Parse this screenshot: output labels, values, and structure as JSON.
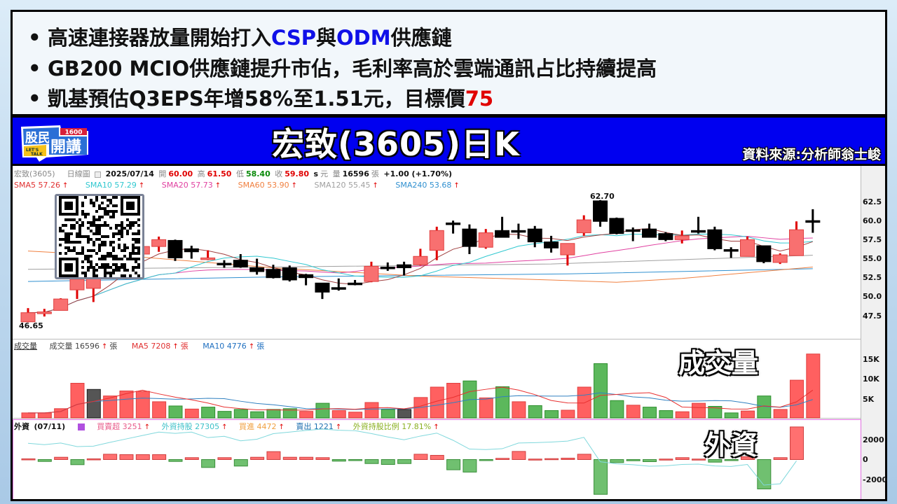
{
  "notes": {
    "bullet": "•",
    "line1": {
      "a": "高速連接器放量開始打入",
      "b": "CSP",
      "c": "與",
      "d": "ODM",
      "e": "供應鏈"
    },
    "line2": {
      "a": "GB200 MCIO供應鏈提升市佔，毛利率高於雲端通訊占比持續提高"
    },
    "line3": {
      "a": "凱基預估Q3EPS年增58%至1.51元，目標價",
      "b": "75"
    }
  },
  "titlebar": {
    "logo_text": "股民開講 1600 LET'S TALK",
    "title": "宏致(3605)日K",
    "source": "資料來源:分析師翁士峻"
  },
  "info": {
    "stock": "宏致(3605)",
    "period": "日線圖",
    "date": "2025/07/14",
    "open_label": "開",
    "open": "60.00",
    "high_label": "高",
    "high": "61.50",
    "low_label": "低",
    "low": "58.40",
    "close_label": "收",
    "close": "59.80",
    "s": "s",
    "unit": "元",
    "vol_label": "量",
    "volume": "16596",
    "vol_unit": "張",
    "change": "+1.00 (+1.70%)"
  },
  "sma": [
    {
      "label": "SMA5 57.26",
      "color": "#e03030"
    },
    {
      "label": "SMA10 57.29",
      "color": "#30c8d0"
    },
    {
      "label": "SMA20 57.73",
      "color": "#e040a0"
    },
    {
      "label": "SMA60 53.90",
      "color": "#f08040"
    },
    {
      "label": "SMA120 55.45",
      "color": "#a0a0a0"
    },
    {
      "label": "SMA240 53.68",
      "color": "#3090d0"
    }
  ],
  "up_arrow": "↑",
  "volume_header": {
    "title": "成交量",
    "vol": "成交量 16596",
    "unit": "張",
    "ma5": "MA5 7208",
    "ma10": "MA10 4776"
  },
  "foreign_header": {
    "title": "外資",
    "date": "(07/11)",
    "net": "買賣超 3251",
    "holding": "外資持股 27305",
    "buy": "買進 4472",
    "sell": "賣出 1221",
    "ratio": "外資持股比例 17.81%"
  },
  "overlays": {
    "volume": "成交量",
    "foreign": "外資"
  },
  "axes": {
    "price_ticks": [
      "62.5",
      "60.0",
      "57.5",
      "55.0",
      "52.5",
      "50.0",
      "47.5"
    ],
    "volume_ticks": [
      "15K",
      "10K",
      "5K"
    ],
    "foreign_ticks": [
      "2000",
      "0",
      "-2000"
    ]
  },
  "colors": {
    "up": "#f87070",
    "up_border": "#e00000",
    "down": "#000000",
    "vol_up": "#ff6060",
    "vol_down": "#5cb85c",
    "vol_flat": "#555555",
    "frame": "#000000",
    "title_bg": "#0000f0"
  },
  "chart_data": [
    {
      "type": "candlestick",
      "ylim": [
        45,
        63.5
      ],
      "high_label": "62.70",
      "low_label": "46.65",
      "ohlc": [
        [
          46.7,
          48.5,
          46.65,
          47.9
        ],
        [
          47.8,
          48.4,
          47.4,
          48.0
        ],
        [
          48.2,
          49.8,
          48.2,
          49.7
        ],
        [
          50.9,
          52.6,
          49.7,
          52.3
        ],
        [
          51.1,
          53.0,
          49.3,
          52.5
        ],
        [
          52.5,
          55.5,
          52.3,
          55.0
        ],
        [
          55.0,
          57.0,
          54.8,
          56.5
        ],
        [
          55.6,
          56.8,
          55.5,
          56.6
        ],
        [
          56.6,
          57.9,
          55.9,
          57.5
        ],
        [
          57.4,
          57.5,
          54.7,
          55.1
        ],
        [
          56.3,
          56.7,
          55.0,
          55.9
        ],
        [
          55.0,
          56.1,
          54.8,
          55.1
        ],
        [
          54.4,
          54.8,
          53.8,
          54.3
        ],
        [
          54.8,
          55.6,
          53.8,
          53.9
        ],
        [
          53.8,
          55.0,
          52.9,
          53.3
        ],
        [
          53.6,
          54.2,
          52.4,
          52.5
        ],
        [
          53.8,
          54.1,
          52.0,
          52.2
        ],
        [
          52.9,
          53.0,
          51.5,
          52.5
        ],
        [
          51.8,
          51.8,
          49.7,
          50.6
        ],
        [
          51.2,
          52.4,
          50.8,
          51.1
        ],
        [
          51.8,
          52.2,
          51.5,
          51.7
        ],
        [
          52.0,
          54.6,
          51.9,
          54.0
        ],
        [
          53.9,
          54.5,
          53.4,
          53.8
        ],
        [
          54.2,
          54.6,
          52.8,
          53.8
        ],
        [
          54.2,
          56.3,
          54.1,
          55.3
        ],
        [
          56.1,
          59.2,
          54.8,
          58.7
        ],
        [
          59.7,
          60.0,
          58.3,
          59.6
        ],
        [
          58.9,
          59.5,
          55.6,
          56.6
        ],
        [
          56.5,
          58.9,
          56.3,
          58.4
        ],
        [
          58.7,
          60.5,
          57.8,
          57.8
        ],
        [
          58.7,
          59.6,
          57.6,
          58.5
        ],
        [
          58.9,
          59.3,
          56.5,
          57.2
        ],
        [
          57.2,
          58.0,
          55.8,
          56.4
        ],
        [
          55.5,
          57.0,
          54.1,
          57.0
        ],
        [
          58.4,
          60.7,
          58.0,
          60.1
        ],
        [
          62.6,
          62.7,
          59.2,
          59.9
        ],
        [
          60.3,
          60.4,
          58.2,
          58.3
        ],
        [
          58.8,
          59.1,
          57.3,
          58.7
        ],
        [
          58.9,
          59.6,
          57.8,
          57.8
        ],
        [
          58.3,
          58.5,
          57.3,
          57.5
        ],
        [
          57.5,
          58.7,
          57.0,
          58.0
        ],
        [
          58.7,
          60.5,
          58.3,
          58.6
        ],
        [
          58.8,
          59.2,
          56.1,
          56.3
        ],
        [
          56.2,
          56.5,
          55.1,
          56.1
        ],
        [
          55.3,
          57.9,
          55.3,
          57.5
        ],
        [
          56.7,
          56.7,
          54.4,
          54.6
        ],
        [
          54.5,
          55.7,
          54.3,
          55.5
        ],
        [
          55.4,
          59.9,
          55.4,
          58.8
        ],
        [
          60.0,
          61.5,
          58.4,
          59.8
        ]
      ],
      "long_sma": {
        "SMA60": [
          [
            1,
            56.0
          ],
          [
            8,
            55.2
          ],
          [
            16,
            53.8
          ],
          [
            25,
            52.7
          ],
          [
            33,
            52.2
          ],
          [
            37,
            51.9
          ],
          [
            41,
            52.4
          ],
          [
            49,
            53.9
          ]
        ],
        "SMA120": [
          [
            1,
            53.6
          ],
          [
            16,
            53.9
          ],
          [
            33,
            54.3
          ],
          [
            49,
            55.45
          ]
        ],
        "SMA240": [
          [
            1,
            52.0
          ],
          [
            16,
            52.6
          ],
          [
            34,
            53.0
          ],
          [
            49,
            53.68
          ]
        ]
      }
    },
    {
      "type": "bar",
      "ylim": [
        0,
        17000
      ],
      "values": [
        1300,
        1300,
        2400,
        9000,
        7400,
        5700,
        7000,
        6900,
        4200,
        3100,
        2300,
        2800,
        1700,
        2200,
        1600,
        2200,
        2400,
        1700,
        3800,
        1900,
        1500,
        4000,
        2200,
        2200,
        5300,
        8000,
        9000,
        9600,
        5200,
        8100,
        4200,
        3200,
        1900,
        2000,
        8000,
        14100,
        4500,
        3300,
        2800,
        1900,
        1600,
        3800,
        3000,
        1300,
        1800,
        5700,
        2200,
        9800,
        16596
      ],
      "direction": [
        "u",
        "u",
        "u",
        "u",
        "f",
        "u",
        "u",
        "u",
        "u",
        "d",
        "u",
        "d",
        "d",
        "d",
        "d",
        "d",
        "d",
        "u",
        "d",
        "u",
        "u",
        "u",
        "d",
        "f",
        "u",
        "u",
        "u",
        "d",
        "u",
        "d",
        "u",
        "d",
        "d",
        "u",
        "u",
        "d",
        "d",
        "u",
        "d",
        "d",
        "u",
        "u",
        "d",
        "d",
        "u",
        "d",
        "u",
        "u",
        "u"
      ]
    },
    {
      "type": "bar",
      "ylim": [
        -3600,
        3600
      ],
      "values": [
        70,
        -190,
        230,
        -510,
        70,
        530,
        490,
        490,
        490,
        -190,
        190,
        -790,
        190,
        -650,
        230,
        790,
        230,
        230,
        190,
        -160,
        -70,
        -400,
        -490,
        -400,
        530,
        420,
        -1020,
        -1250,
        -70,
        120,
        810,
        50,
        90,
        140,
        530,
        -3470,
        -300,
        -120,
        -210,
        50,
        190,
        50,
        -260,
        -70,
        280,
        -2930,
        190,
        3251
      ],
      "holding_last": 27305
    }
  ]
}
